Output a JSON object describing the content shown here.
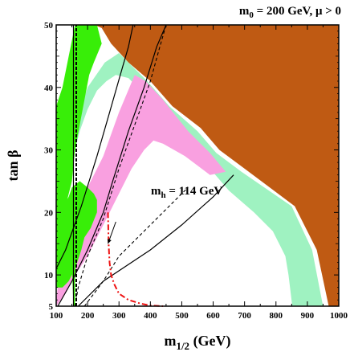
{
  "chart_data": {
    "type": "area",
    "title_main": "m",
    "title_sub": "0",
    "title_rest": " = 200 GeV,  μ > 0",
    "xlabel_main": "m",
    "xlabel_sub": "1/2",
    "xlabel_rest": " (GeV)",
    "ylabel": "tan β",
    "xlim": [
      100,
      1000
    ],
    "ylim": [
      5,
      50
    ],
    "x_ticks": [
      100,
      200,
      300,
      400,
      500,
      600,
      700,
      800,
      900,
      1000
    ],
    "y_ticks": [
      5,
      10,
      20,
      30,
      40,
      50
    ],
    "y_tick_labels": [
      "5",
      "10",
      "20",
      "30",
      "40",
      "50"
    ],
    "annotation": {
      "main": "m",
      "sub": "h",
      "rest": " = 114 GeV"
    },
    "colors": {
      "brown": "#bf5a13",
      "light_green": "#9ff2c1",
      "pink": "#f9a0e0",
      "green": "#38ee08",
      "dash_dot": "#ee1111"
    },
    "regions": [
      {
        "id": "brown",
        "points": [
          [
            222,
            50
          ],
          [
            1000,
            50
          ],
          [
            1000,
            5
          ],
          [
            968,
            5
          ],
          [
            930,
            14
          ],
          [
            860,
            21
          ],
          [
            700,
            27
          ],
          [
            620,
            30
          ],
          [
            560,
            33.5
          ],
          [
            470,
            37
          ],
          [
            400,
            41
          ],
          [
            330,
            44
          ],
          [
            275,
            47
          ],
          [
            245,
            49.5
          ]
        ]
      },
      {
        "id": "light_green",
        "points": [
          [
            160,
            30
          ],
          [
            175,
            33
          ],
          [
            200,
            36.5
          ],
          [
            230,
            39.5
          ],
          [
            260,
            41
          ],
          [
            290,
            42
          ],
          [
            330,
            41.5
          ],
          [
            380,
            39
          ],
          [
            440,
            35.5
          ],
          [
            520,
            31
          ],
          [
            590,
            27
          ],
          [
            650,
            23.5
          ],
          [
            730,
            20
          ],
          [
            790,
            17
          ],
          [
            830,
            13
          ],
          [
            840,
            10
          ],
          [
            852,
            5
          ],
          [
            950,
            5
          ],
          [
            915,
            14
          ],
          [
            850,
            21
          ],
          [
            690,
            26.5
          ],
          [
            610,
            29.5
          ],
          [
            550,
            33
          ],
          [
            460,
            37
          ],
          [
            390,
            41
          ],
          [
            330,
            44
          ],
          [
            300,
            45.5
          ],
          [
            255,
            44
          ],
          [
            200,
            40
          ],
          [
            155,
            33
          ]
        ]
      },
      {
        "id": "pink",
        "points": [
          [
            100,
            6
          ],
          [
            112,
            11
          ],
          [
            150,
            19
          ],
          [
            200,
            24
          ],
          [
            250,
            29
          ],
          [
            300,
            36
          ],
          [
            350,
            42
          ],
          [
            385,
            41
          ],
          [
            440,
            38
          ],
          [
            520,
            33
          ],
          [
            590,
            29.5
          ],
          [
            640,
            26.5
          ],
          [
            590,
            26
          ],
          [
            510,
            29
          ],
          [
            440,
            31
          ],
          [
            410,
            31.5
          ],
          [
            380,
            30
          ],
          [
            340,
            27
          ],
          [
            300,
            23
          ],
          [
            250,
            18
          ],
          [
            200,
            13
          ],
          [
            160,
            10
          ],
          [
            130,
            7
          ],
          [
            100,
            5
          ]
        ]
      },
      {
        "id": "green_upper",
        "points": [
          [
            100,
            37
          ],
          [
            120,
            40
          ],
          [
            140,
            45
          ],
          [
            160,
            50
          ],
          [
            230,
            50
          ],
          [
            245,
            47
          ],
          [
            220,
            44
          ],
          [
            205,
            42
          ],
          [
            190,
            38
          ],
          [
            175,
            34
          ],
          [
            160,
            30
          ],
          [
            150,
            25
          ],
          [
            135,
            22
          ],
          [
            115,
            20
          ],
          [
            100,
            20
          ]
        ]
      },
      {
        "id": "green_lower",
        "points": [
          [
            100,
            9
          ],
          [
            100,
            20
          ],
          [
            122,
            21
          ],
          [
            140,
            22.5
          ],
          [
            150,
            24
          ],
          [
            175,
            25
          ],
          [
            200,
            24
          ],
          [
            220,
            23
          ],
          [
            230,
            22
          ],
          [
            230,
            20
          ],
          [
            210,
            17.5
          ],
          [
            190,
            16
          ],
          [
            180,
            14
          ],
          [
            170,
            12.5
          ],
          [
            160,
            11
          ],
          [
            150,
            10
          ],
          [
            140,
            9
          ],
          [
            120,
            8
          ],
          [
            100,
            8
          ]
        ]
      },
      {
        "id": "green_strip",
        "points": [
          [
            155,
            5
          ],
          [
            150,
            11
          ],
          [
            150,
            15
          ],
          [
            165,
            15
          ],
          [
            160,
            10
          ],
          [
            160,
            5
          ]
        ]
      }
    ],
    "lines": [
      {
        "id": "solid_1",
        "style": "solid",
        "points": [
          [
            100,
            11
          ],
          [
            130,
            14
          ],
          [
            180,
            21
          ],
          [
            230,
            29
          ],
          [
            270,
            36
          ],
          [
            310,
            43
          ],
          [
            330,
            46.5
          ],
          [
            345,
            50
          ]
        ]
      },
      {
        "id": "solid_2",
        "style": "solid",
        "points": [
          [
            105,
            5
          ],
          [
            150,
            9
          ],
          [
            200,
            14
          ],
          [
            250,
            20
          ],
          [
            280,
            25
          ],
          [
            330,
            33
          ],
          [
            380,
            40
          ],
          [
            420,
            46.5
          ],
          [
            450,
            50
          ]
        ]
      },
      {
        "id": "solid_3",
        "style": "solid",
        "points": [
          [
            170,
            5
          ],
          [
            250,
            9
          ],
          [
            400,
            14
          ],
          [
            500,
            18
          ],
          [
            600,
            22.5
          ],
          [
            665,
            26
          ]
        ]
      },
      {
        "id": "solid_4",
        "style": "solid",
        "points": [
          [
            155,
            5
          ],
          [
            155,
            50
          ]
        ]
      },
      {
        "id": "dashed_1",
        "style": "dashed",
        "points": [
          [
            160,
            5
          ],
          [
            170,
            8
          ],
          [
            200,
            13
          ],
          [
            250,
            19
          ],
          [
            300,
            27
          ],
          [
            350,
            34
          ],
          [
            400,
            41
          ],
          [
            430,
            46.5
          ],
          [
            450,
            50
          ]
        ]
      },
      {
        "id": "dashed_2",
        "style": "dashed",
        "points": [
          [
            190,
            5
          ],
          [
            250,
            9
          ],
          [
            300,
            13
          ],
          [
            400,
            18
          ],
          [
            490,
            22.5
          ],
          [
            520,
            24
          ]
        ]
      },
      {
        "id": "dotted_vertical",
        "style": "dotted",
        "points": [
          [
            164,
            5
          ],
          [
            164,
            50
          ]
        ]
      },
      {
        "id": "dashdot_red",
        "style": "dashdot",
        "points": [
          [
            265,
            20
          ],
          [
            267,
            15
          ],
          [
            270,
            12
          ],
          [
            275,
            10
          ],
          [
            285,
            8.5
          ],
          [
            300,
            7
          ],
          [
            330,
            6
          ],
          [
            370,
            5.4
          ],
          [
            400,
            5.1
          ],
          [
            440,
            5
          ]
        ]
      }
    ],
    "arrow": {
      "from": [
        290,
        18.5
      ],
      "to": [
        265,
        15
      ]
    }
  }
}
